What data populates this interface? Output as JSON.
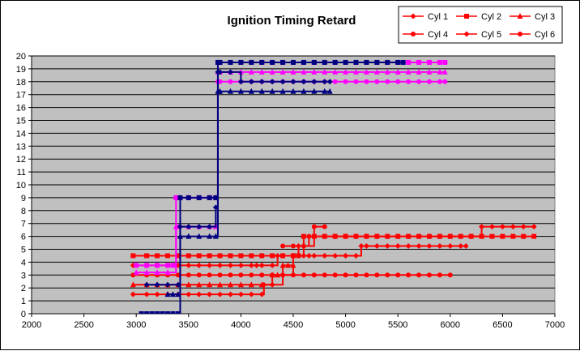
{
  "chart_data": {
    "type": "scatter",
    "title": "Ignition Timing Retard",
    "xlabel": "",
    "ylabel": "",
    "xlim": [
      2000,
      7000
    ],
    "ylim": [
      0,
      20
    ],
    "x_ticks": [
      "2000",
      "2500",
      "3000",
      "3500",
      "4000",
      "4500",
      "5000",
      "5500",
      "6000",
      "6500",
      "7000"
    ],
    "y_ticks": [
      "0",
      "1",
      "2",
      "3",
      "4",
      "5",
      "6",
      "7",
      "8",
      "9",
      "10",
      "11",
      "12",
      "13",
      "14",
      "15",
      "16",
      "17",
      "18",
      "19",
      "20"
    ],
    "grid": true,
    "plot_background": "#c0c0c0",
    "legend_position": "top-right",
    "legend": [
      {
        "name": "Cyl 1",
        "marker": "diamond",
        "color": "#ff0000"
      },
      {
        "name": "Cyl 2",
        "marker": "square",
        "color": "#ff0000"
      },
      {
        "name": "Cyl 3",
        "marker": "triangle",
        "color": "#ff0000"
      },
      {
        "name": "Cyl 4",
        "marker": "circle",
        "color": "#ff0000"
      },
      {
        "name": "Cyl 5",
        "marker": "diamond",
        "color": "#ff0000"
      },
      {
        "name": "Cyl 6",
        "marker": "circle",
        "color": "#ff0000"
      }
    ],
    "series": [
      {
        "color": "#ff0000",
        "marker": "diamond",
        "x": [
          2970,
          3100,
          3200,
          3300,
          3400,
          3500,
          3600,
          3700,
          3800,
          3900,
          4000,
          4100,
          4150,
          4200,
          4300,
          4350,
          4400,
          4500,
          4600,
          4650,
          4700,
          4800,
          4900,
          5000,
          5100,
          5150,
          5200,
          5300,
          5400,
          5500,
          5600,
          5700,
          5800,
          5900,
          6000,
          6100,
          6150
        ],
        "y": [
          3.75,
          3.75,
          3.75,
          3.75,
          3.75,
          3.75,
          3.75,
          3.75,
          3.75,
          3.75,
          3.75,
          3.75,
          3.75,
          3.75,
          3.75,
          4.5,
          4.5,
          4.5,
          4.5,
          4.5,
          4.5,
          4.5,
          4.5,
          4.5,
          4.5,
          5.25,
          5.25,
          5.25,
          5.25,
          5.25,
          5.25,
          5.25,
          5.25,
          5.25,
          5.25,
          5.25,
          5.25
        ]
      },
      {
        "color": "#ff0000",
        "marker": "square",
        "x": [
          2970,
          3100,
          3200,
          3300,
          3400,
          3500,
          3600,
          3700,
          3800,
          3900,
          4000,
          4100,
          4200,
          4300,
          4400,
          4500,
          4550,
          4600,
          4700,
          4800,
          4900,
          5000,
          5100,
          5200,
          5300,
          5400,
          5500,
          5600,
          5700,
          5800,
          5900,
          6000,
          6100,
          6200,
          6300,
          6400,
          6500,
          6600,
          6700,
          6800
        ],
        "y": [
          4.5,
          4.5,
          4.5,
          4.5,
          4.5,
          4.5,
          4.5,
          4.5,
          4.5,
          4.5,
          4.5,
          4.5,
          4.5,
          4.5,
          4.5,
          4.5,
          4.5,
          6,
          6,
          6,
          6,
          6,
          6,
          6,
          6,
          6,
          6,
          6,
          6,
          6,
          6,
          6,
          6,
          6,
          6,
          6,
          6,
          6,
          6,
          6
        ]
      },
      {
        "color": "#ff0000",
        "marker": "triangle",
        "x": [
          2970,
          3100,
          3200,
          3300,
          3400,
          3500,
          3600,
          3700,
          3800,
          3900,
          4000,
          4100,
          4200,
          4300,
          4350,
          4400,
          4450,
          4500
        ],
        "y": [
          2.25,
          2.25,
          2.25,
          2.25,
          2.25,
          2.25,
          2.25,
          2.25,
          2.25,
          2.25,
          2.25,
          2.25,
          2.25,
          3,
          3,
          3.75,
          3.75,
          3.75
        ]
      },
      {
        "color": "#ff0000",
        "marker": "circle",
        "x": [
          2970,
          3100,
          3200,
          3300,
          3400,
          3500,
          3600,
          3700,
          3800,
          3900,
          4000,
          4100,
          4200,
          4300,
          4400,
          4500,
          4600,
          4700,
          4800,
          4900,
          5000,
          5100,
          5200,
          5300,
          5400,
          5500,
          5600,
          5700,
          5800,
          5900,
          6000
        ],
        "y": [
          3,
          3,
          3,
          3,
          3,
          3,
          3,
          3,
          3,
          3,
          3,
          3,
          3,
          3,
          3,
          3,
          3,
          3,
          3,
          3,
          3,
          3,
          3,
          3,
          3,
          3,
          3,
          3,
          3,
          3,
          3
        ]
      },
      {
        "color": "#ff0000",
        "marker": "diamond",
        "x": [
          2970,
          3100,
          3200,
          3300,
          3400,
          3500,
          3600,
          3700,
          3800,
          3900,
          4000,
          4100,
          4200,
          4220,
          4300,
          4400,
          4500,
          4550,
          4600,
          4700,
          4800,
          4900,
          5000,
          5100,
          5200,
          5300,
          5400,
          5500,
          5600,
          5700,
          5800,
          5900,
          6000,
          6100,
          6200,
          6300,
          6400,
          6500,
          6600,
          6700,
          6800
        ],
        "y": [
          1.5,
          1.5,
          1.5,
          1.5,
          1.5,
          1.5,
          1.5,
          1.5,
          1.5,
          1.5,
          1.5,
          1.5,
          1.5,
          2.25,
          2.25,
          3,
          4.5,
          5.25,
          5.25,
          6,
          6,
          6,
          6,
          6,
          6,
          6,
          6,
          6,
          6,
          6,
          6,
          6,
          6,
          6,
          6,
          6.75,
          6.75,
          6.75,
          6.75,
          6.75,
          6.75
        ]
      },
      {
        "color": "#ff0000",
        "marker": "circle",
        "x": [
          4400,
          4500,
          4600,
          4650,
          4700,
          4800
        ],
        "y": [
          5.25,
          5.25,
          5.25,
          6,
          6.75,
          6.75
        ]
      },
      {
        "color": "#ff00ff",
        "marker": "square",
        "x": [
          3000,
          3100,
          3200,
          3300,
          3350,
          3380,
          3400,
          3500,
          3600,
          3700,
          3760,
          3780,
          3800,
          3900,
          4000,
          4100,
          4200,
          4300,
          4400,
          4500,
          4600,
          4700,
          4800,
          4900,
          5000,
          5100,
          5200,
          5300,
          5400,
          5500,
          5600,
          5700,
          5800,
          5900,
          5950
        ],
        "y": [
          3.75,
          3.75,
          3.75,
          3.75,
          3.75,
          9,
          9,
          9,
          9,
          9,
          9,
          19.5,
          19.5,
          19.5,
          19.5,
          19.5,
          19.5,
          19.5,
          19.5,
          19.5,
          19.5,
          19.5,
          19.5,
          19.5,
          19.5,
          19.5,
          19.5,
          19.5,
          19.5,
          19.5,
          19.5,
          19.5,
          19.5,
          19.5,
          19.5
        ]
      },
      {
        "color": "#ff00ff",
        "marker": "triangle",
        "x": [
          3000,
          3100,
          3200,
          3300,
          3380,
          3400,
          3500,
          3600,
          3700,
          3760,
          3780,
          3800,
          3900,
          4000,
          4100,
          4200,
          4300,
          4400,
          4500,
          4600,
          4700,
          4800,
          4900,
          5000,
          5100,
          5200,
          5300,
          5400,
          5500,
          5600,
          5700,
          5800,
          5900,
          5950
        ],
        "y": [
          3.2,
          3.2,
          3.2,
          3.2,
          6.75,
          6.75,
          6.75,
          6.75,
          6.75,
          6.75,
          18.75,
          18.75,
          18.75,
          18.75,
          18.75,
          18.75,
          18.75,
          18.75,
          18.75,
          18.75,
          18.75,
          18.75,
          18.75,
          18.75,
          18.75,
          18.75,
          18.75,
          18.75,
          18.75,
          18.75,
          18.75,
          18.75,
          18.75,
          18.75
        ]
      },
      {
        "color": "#ff00ff",
        "marker": "circle",
        "x": [
          3760,
          3780,
          3800,
          3900,
          4000,
          4100,
          4200,
          4300,
          4400,
          4500,
          4600,
          4700,
          4800,
          4900,
          5000,
          5100,
          5200,
          5300,
          5400,
          5500,
          5600,
          5700,
          5800,
          5900,
          5950
        ],
        "y": [
          6.75,
          18,
          18,
          18,
          18,
          18,
          18,
          18,
          18,
          18,
          18,
          18,
          18,
          18,
          18,
          18,
          18,
          18,
          18,
          18,
          18,
          18,
          18,
          18,
          18
        ]
      },
      {
        "color": "#000080",
        "marker": "square",
        "x": [
          3050,
          3100,
          3150,
          3200,
          3250,
          3300,
          3350,
          3400,
          3420,
          3500,
          3600,
          3700,
          3760,
          3780,
          3800,
          3900,
          4000,
          4100,
          4200,
          4300,
          4400,
          4500,
          4600,
          4700,
          4800,
          4900,
          5000,
          5100,
          5200,
          5300,
          5400,
          5500,
          5550
        ],
        "y": [
          0,
          0,
          0,
          0,
          0,
          0,
          0,
          0,
          9,
          9,
          9,
          9,
          9,
          19.5,
          19.5,
          19.5,
          19.5,
          19.5,
          19.5,
          19.5,
          19.5,
          19.5,
          19.5,
          19.5,
          19.5,
          19.5,
          19.5,
          19.5,
          19.5,
          19.5,
          19.5,
          19.5,
          19.5
        ]
      },
      {
        "color": "#000080",
        "marker": "diamond",
        "x": [
          3100,
          3200,
          3300,
          3400,
          3420,
          3500,
          3600,
          3700,
          3760,
          3780,
          3800,
          3900,
          4000,
          4100,
          4200,
          4300,
          4400,
          4500,
          4600,
          4700,
          4800,
          4850
        ],
        "y": [
          2.25,
          2.25,
          2.25,
          2.25,
          6.75,
          6.75,
          6.75,
          6.75,
          8.25,
          18.75,
          18.75,
          18.75,
          18,
          18,
          18,
          18,
          18,
          18,
          18,
          18,
          18,
          18
        ]
      },
      {
        "color": "#000080",
        "marker": "triangle",
        "x": [
          3300,
          3350,
          3400,
          3420,
          3500,
          3600,
          3700,
          3760,
          3780,
          3800,
          3900,
          4000,
          4100,
          4200,
          4300,
          4400,
          4500,
          4600,
          4700,
          4800,
          4850
        ],
        "y": [
          1.5,
          1.5,
          1.5,
          6,
          6,
          6,
          6,
          6,
          17.25,
          17.25,
          17.25,
          17.25,
          17.25,
          17.25,
          17.25,
          17.25,
          17.25,
          17.25,
          17.25,
          17.25,
          17.25
        ]
      }
    ]
  }
}
